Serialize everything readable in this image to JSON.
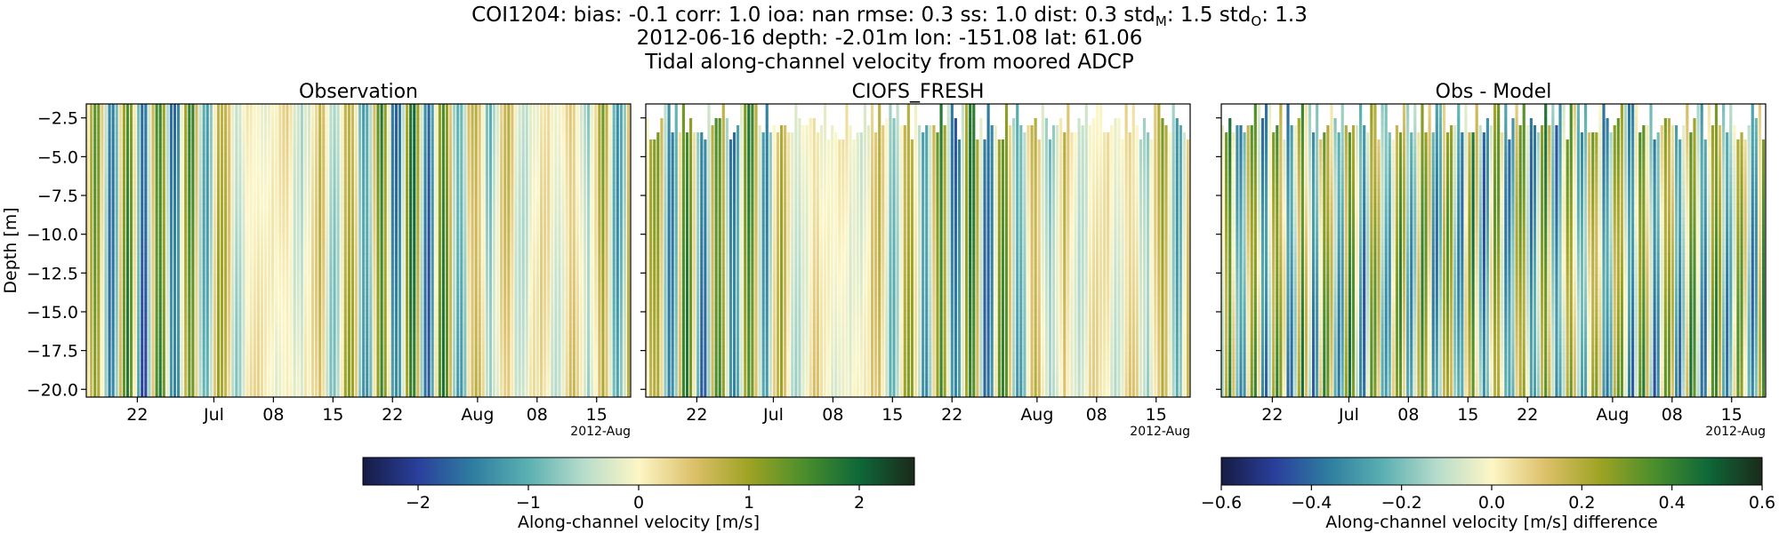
{
  "figure": {
    "title_line1": "COI1204: bias: -0.1  corr: 1.0  ioa: nan  rmse: 0.3  ss: 1.0  dist: 0.3  std",
    "std_m_sub": "M",
    "std_m_value": ": 1.5  std",
    "std_o_sub": "O",
    "std_o_value": ": 1.3",
    "title_line2": "2012-06-16 depth: -2.01m lon: -151.08 lat: 61.06",
    "title_line3": "Tidal along-channel velocity from moored ADCP"
  },
  "chart_data": [
    {
      "type": "heatmap",
      "title": "Observation",
      "ylabel": "Depth [m]",
      "ylim": [
        -20.5,
        -1.6
      ],
      "yticks": [
        -2.5,
        -5.0,
        -7.5,
        -10.0,
        -12.5,
        -15.0,
        -17.5,
        -20.0
      ],
      "ytick_labels": [
        "−2.5",
        "−5.0",
        "−7.5",
        "−10.0",
        "−12.5",
        "−15.0",
        "−17.5",
        "−20.0"
      ],
      "xlim": [
        "2012-06-16",
        "2012-08-19"
      ],
      "xticks": [
        "2012-06-22",
        "2012-07-01",
        "2012-07-08",
        "2012-07-15",
        "2012-07-22",
        "2012-08-01",
        "2012-08-08",
        "2012-08-15"
      ],
      "xtick_labels": [
        "22",
        "Jul",
        "08",
        "15",
        "22",
        "Aug",
        "08",
        "15"
      ],
      "x_offset_label": "2012-Aug",
      "clim": [
        -2.5,
        2.5
      ],
      "colormap": "delta"
    },
    {
      "type": "heatmap",
      "title": "CIOFS_FRESH",
      "ylim": [
        -20.5,
        -1.6
      ],
      "xlim": [
        "2012-06-16",
        "2012-08-19"
      ],
      "xticks": [
        "2012-06-22",
        "2012-07-01",
        "2012-07-08",
        "2012-07-15",
        "2012-07-22",
        "2012-08-01",
        "2012-08-08",
        "2012-08-15"
      ],
      "xtick_labels": [
        "22",
        "Jul",
        "08",
        "15",
        "22",
        "Aug",
        "08",
        "15"
      ],
      "x_offset_label": "2012-Aug",
      "clim": [
        -2.5,
        2.5
      ],
      "colormap": "delta"
    },
    {
      "type": "heatmap",
      "title": "Obs - Model",
      "ylim": [
        -20.5,
        -1.6
      ],
      "xlim": [
        "2012-06-16",
        "2012-08-19"
      ],
      "xticks": [
        "2012-06-22",
        "2012-07-01",
        "2012-07-08",
        "2012-07-15",
        "2012-07-22",
        "2012-08-01",
        "2012-08-08",
        "2012-08-15"
      ],
      "xtick_labels": [
        "22",
        "Jul",
        "08",
        "15",
        "22",
        "Aug",
        "08",
        "15"
      ],
      "x_offset_label": "2012-Aug",
      "clim": [
        -0.6,
        0.6
      ],
      "colormap": "delta"
    }
  ],
  "colorbars": [
    {
      "label": "Along-channel velocity [m/s]",
      "range": [
        -2.5,
        2.5
      ],
      "ticks": [
        -2,
        -1,
        0,
        1,
        2
      ],
      "tick_labels": [
        "−2",
        "−1",
        "0",
        "1",
        "2"
      ]
    },
    {
      "label": "Along-channel velocity [m/s] difference",
      "range": [
        -0.6,
        0.6
      ],
      "ticks": [
        -0.6,
        -0.4,
        -0.2,
        0.0,
        0.2,
        0.4,
        0.6
      ],
      "tick_labels": [
        "−0.6",
        "−0.4",
        "−0.2",
        "0.0",
        "0.2",
        "0.4",
        "0.6"
      ]
    }
  ],
  "colors": {
    "cmap_stops": [
      "#161c44",
      "#2a3f9c",
      "#2f7ea0",
      "#5bb0b2",
      "#b7dccb",
      "#fdf6c6",
      "#dcc06a",
      "#9ea323",
      "#4b8e2c",
      "#0e6838",
      "#1b2a1a"
    ],
    "gap": "#ffffff",
    "axis": "#000000"
  }
}
